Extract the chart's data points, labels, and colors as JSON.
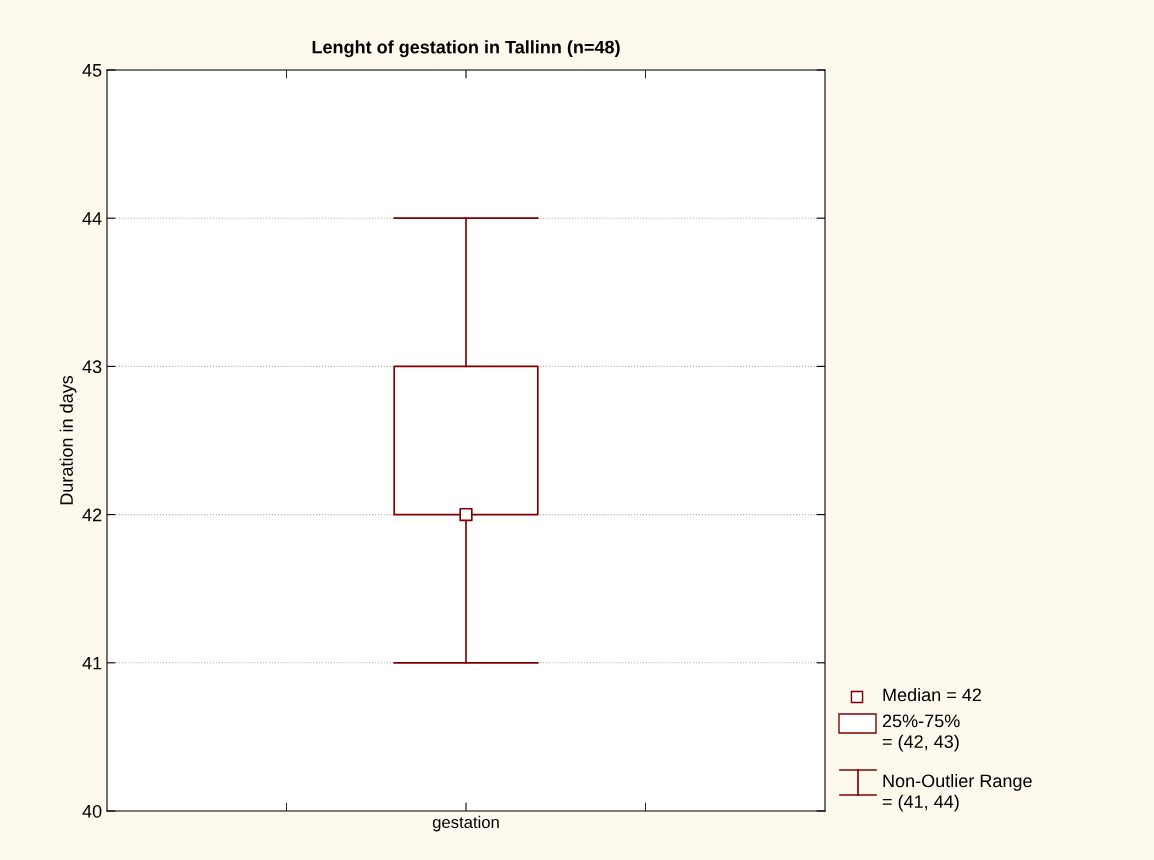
{
  "chart_data": {
    "type": "box",
    "title": "Lenght of gestation in Tallinn (n=48)",
    "ylabel": "Duration in days",
    "categories": [
      "gestation"
    ],
    "boxes": [
      {
        "low": 41,
        "q1": 42,
        "median": 42,
        "q3": 43,
        "high": 44
      }
    ],
    "color": "#800000",
    "ylim": [
      40,
      45
    ],
    "yticks": [
      40,
      41,
      42,
      43,
      44,
      45
    ],
    "grid": "y",
    "marker": "square",
    "annotations": [
      "Median = 42",
      "25%-75%\n= (42, 43)",
      "Non-Outlier Range\n= (41, 44)"
    ]
  }
}
